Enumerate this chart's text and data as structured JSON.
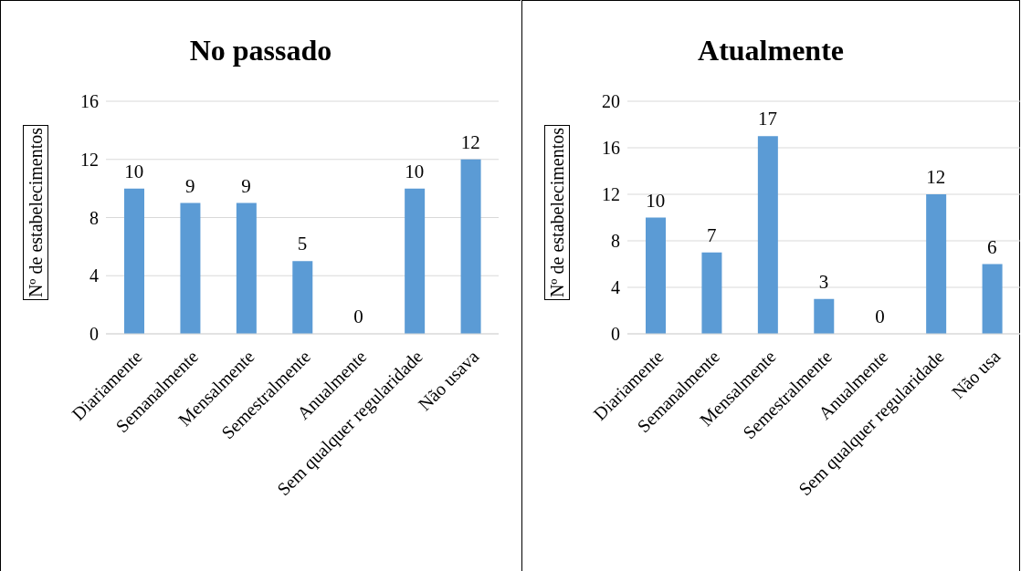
{
  "chart_data": [
    {
      "type": "bar",
      "title": "No passado",
      "ylabel": "Nº de estabelecimentos",
      "categories": [
        "Diariamente",
        "Semanalmente",
        "Mensalmente",
        "Semestralmente",
        "Anualmente",
        "Sem qualquer regularidade",
        "Não usava"
      ],
      "values": [
        10,
        9,
        9,
        5,
        0,
        10,
        12
      ],
      "color": "#5b9bd5",
      "ylim": [
        0,
        16
      ],
      "yticks": [
        0,
        4,
        8,
        12,
        16
      ],
      "grid": "y",
      "data_labels": true
    },
    {
      "type": "bar",
      "title": "Atualmente",
      "ylabel": "Nº de estabelecimentos",
      "categories": [
        "Diariamente",
        "Semanalmente",
        "Mensalmente",
        "Semestralmente",
        "Anualmente",
        "Sem qualquer regularidade",
        "Não usa"
      ],
      "values": [
        10,
        7,
        17,
        3,
        0,
        12,
        6
      ],
      "color": "#5b9bd5",
      "ylim": [
        0,
        20
      ],
      "yticks": [
        0,
        4,
        8,
        12,
        16,
        20
      ],
      "grid": "y",
      "data_labels": true
    }
  ]
}
